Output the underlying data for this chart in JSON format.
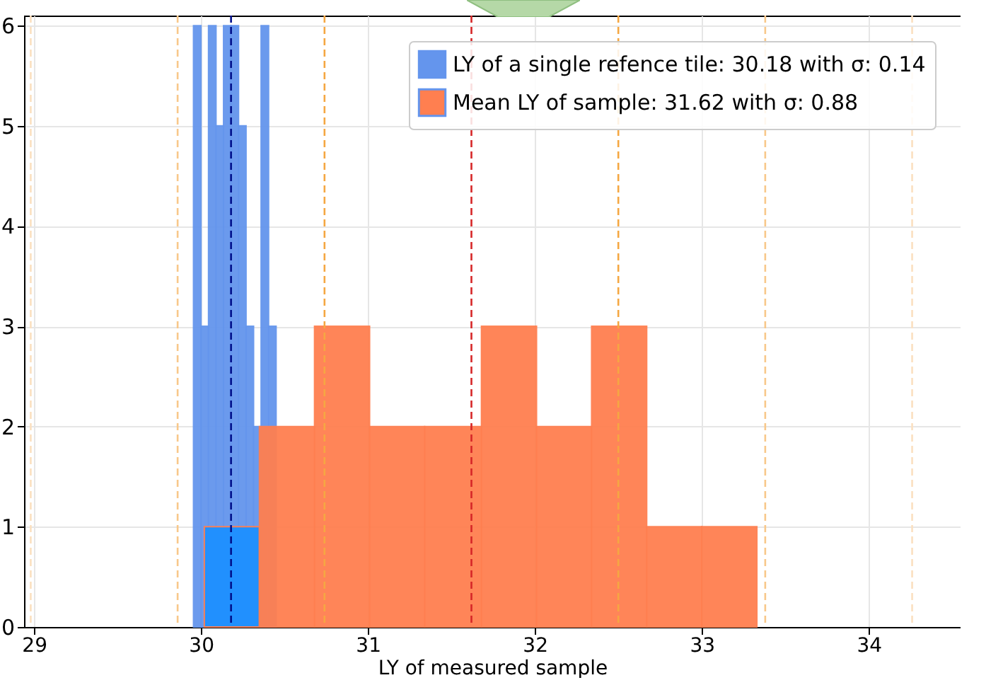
{
  "chart_data": {
    "type": "histogram",
    "xlabel": "LY of measured sample",
    "xlim": [
      28.94,
      34.55
    ],
    "ylim": [
      0,
      6.1
    ],
    "xticks": [
      29,
      30,
      31,
      32,
      33,
      34
    ],
    "yticks": [
      0,
      1,
      2,
      3,
      4,
      5,
      6
    ],
    "grid": true,
    "legend": "top right",
    "bins": [
      30.02,
      30.35,
      30.68,
      31.01,
      31.34,
      31.68,
      32.01,
      32.34,
      32.67,
      33.0,
      33.33
    ],
    "series": [
      {
        "name": "LY of a single refence tile: 30.18 with σ: 0.14",
        "color": "#6495ed",
        "bins": [
          29.955,
          30.0,
          30.045,
          30.09,
          30.135,
          30.18,
          30.225,
          30.27,
          30.315,
          30.36,
          30.405,
          30.45
        ],
        "values": [
          6,
          3,
          6,
          5,
          6,
          6,
          5,
          3,
          2,
          6,
          3
        ]
      },
      {
        "name": "Mean LY of sample: 31.62 with σ: 0.88",
        "color": "#ff7f50",
        "colors": [
          "#1e90ff",
          "#ff7f50",
          "#ff7f50",
          "#ff7f50",
          "#ff7f50",
          "#ff7f50",
          "#ff7f50",
          "#ff7f50",
          "#ff7f50",
          "#ff7f50"
        ],
        "values": [
          1,
          2,
          3,
          2,
          2,
          3,
          2,
          3,
          1,
          1
        ]
      }
    ],
    "ref_lines": [
      {
        "axis": "x",
        "value": 30.18,
        "color": "#00108b",
        "line_style": "dashed"
      },
      {
        "axis": "x",
        "value": 31.62,
        "color": "#d62728",
        "line_style": "dashed"
      },
      {
        "axis": "x",
        "value": 30.74,
        "color": "#f5a742",
        "line_style": "dashed"
      },
      {
        "axis": "x",
        "value": 32.5,
        "color": "#f5a742",
        "line_style": "dashed"
      },
      {
        "axis": "x",
        "value": 29.86,
        "color": "#f8c88a",
        "line_style": "dashed"
      },
      {
        "axis": "x",
        "value": 33.38,
        "color": "#f8c88a",
        "line_style": "dashed"
      },
      {
        "axis": "x",
        "value": 28.98,
        "color": "#fbe0c0",
        "line_style": "dashed"
      },
      {
        "axis": "x",
        "value": 34.26,
        "color": "#fbe0c0",
        "line_style": "dashed"
      }
    ]
  }
}
